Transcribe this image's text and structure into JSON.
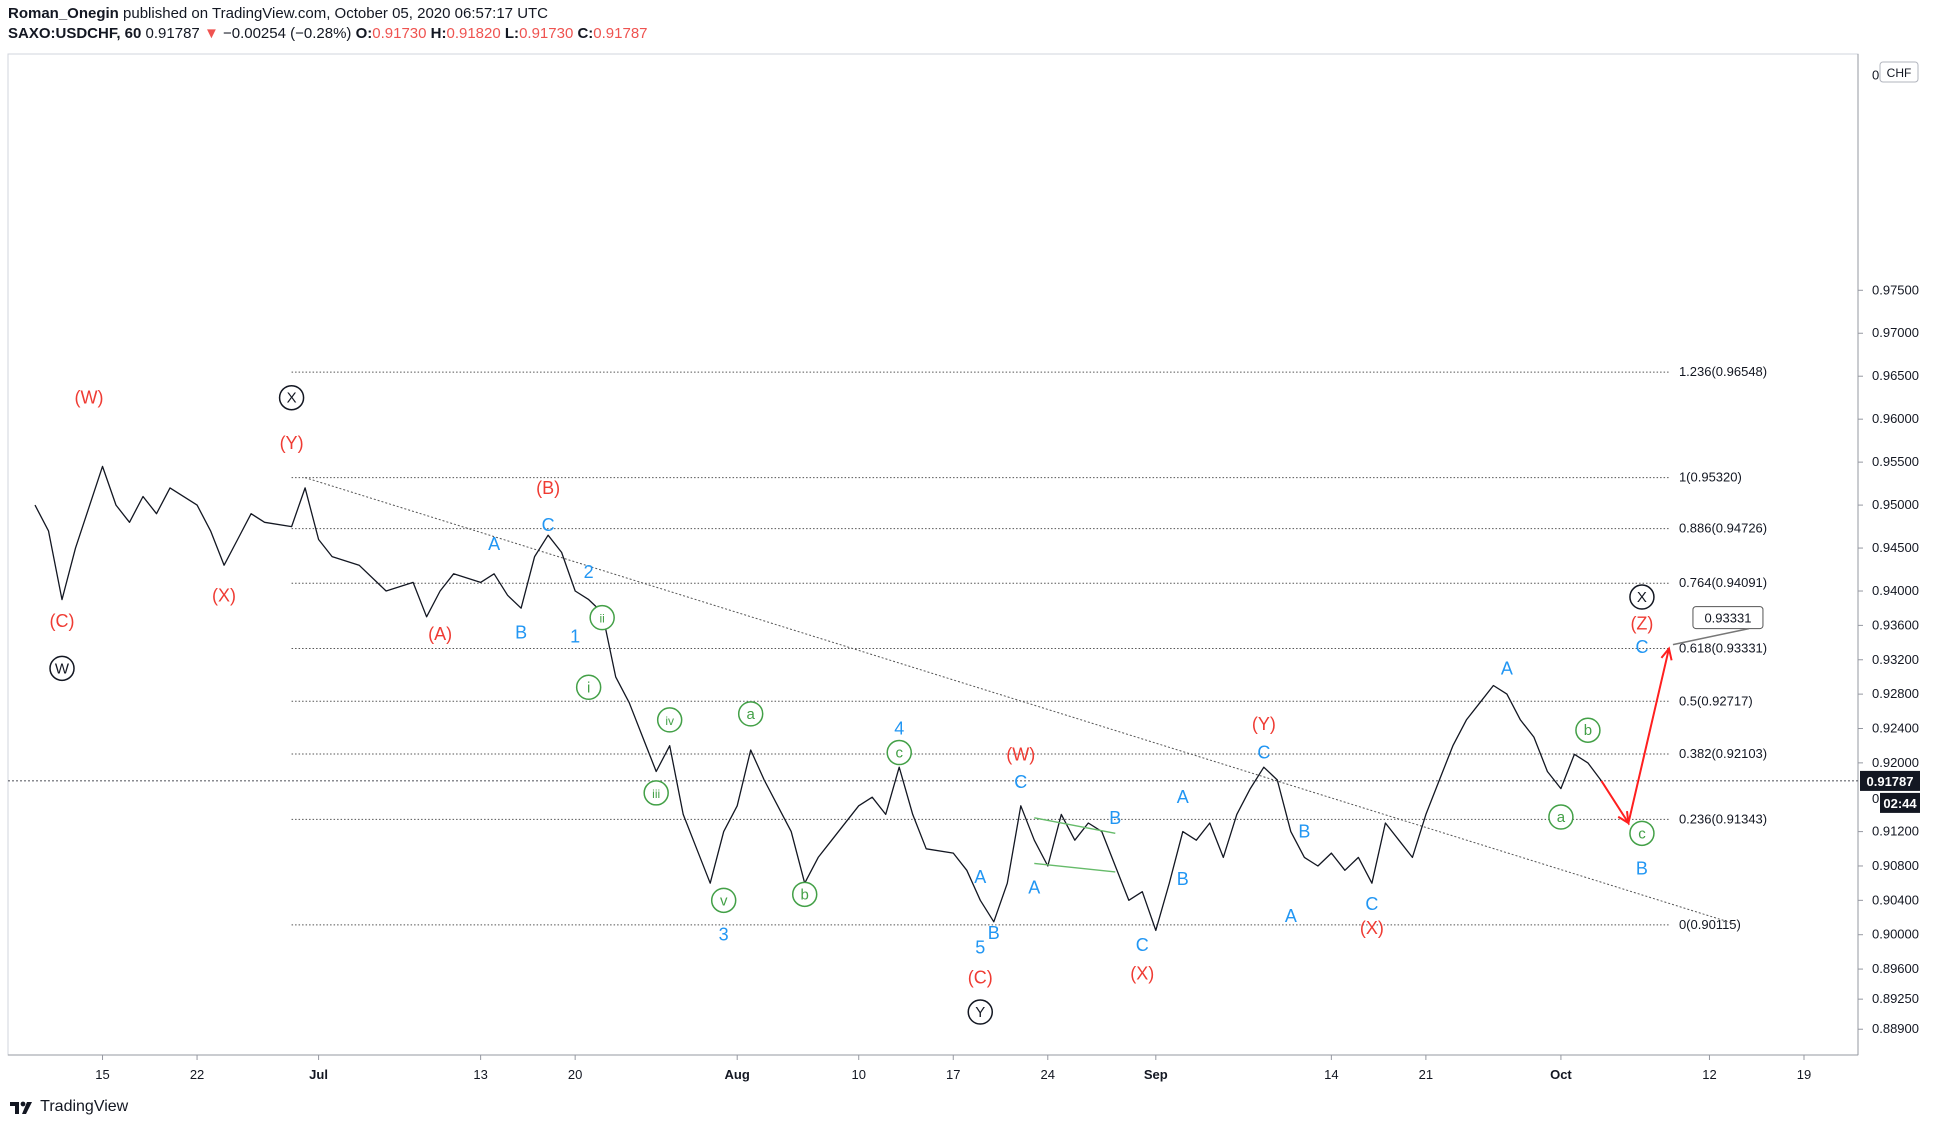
{
  "header": {
    "publisher": "Roman_Onegin",
    "published_text": "published on TradingView.com, October 05, 2020 06:57:17 UTC",
    "symbol": "SAXO:USDCHF, 60",
    "last": "0.91787",
    "arrow": "▼",
    "change": "−0.00254 (−0.28%)",
    "o_label": "O:",
    "o_value": "0.91730",
    "h_label": "H:",
    "h_value": "0.91820",
    "l_label": "L:",
    "l_value": "0.91730",
    "c_label": "C:",
    "c_value": "0.91787"
  },
  "footer": {
    "brand": "TradingView",
    "icon": "tradingview-logo-icon"
  },
  "chart_data": {
    "type": "line",
    "currency_badge": "CHF",
    "price_label": "0.91787",
    "countdown": "02:44",
    "ylim": [
      0.886,
      1.0025
    ],
    "y_ticks": [
      {
        "v": 0.975,
        "label": "0.97500"
      },
      {
        "v": 0.97,
        "label": "0.97000"
      },
      {
        "v": 0.965,
        "label": "0.96500"
      },
      {
        "v": 0.96,
        "label": "0.96000"
      },
      {
        "v": 0.955,
        "label": "0.95500"
      },
      {
        "v": 0.95,
        "label": "0.95000"
      },
      {
        "v": 0.945,
        "label": "0.94500"
      },
      {
        "v": 0.94,
        "label": "0.94000"
      },
      {
        "v": 0.936,
        "label": "0.93600"
      },
      {
        "v": 0.932,
        "label": "0.93200"
      },
      {
        "v": 0.928,
        "label": "0.92800"
      },
      {
        "v": 0.924,
        "label": "0.92400"
      },
      {
        "v": 0.92,
        "label": "0.92000"
      },
      {
        "v": 0.912,
        "label": "0.91200"
      },
      {
        "v": 0.908,
        "label": "0.90800"
      },
      {
        "v": 0.904,
        "label": "0.90400"
      },
      {
        "v": 0.9,
        "label": "0.90000"
      },
      {
        "v": 0.896,
        "label": "0.89600"
      },
      {
        "v": 0.8925,
        "label": "0.89250"
      },
      {
        "v": 0.889,
        "label": "0.88900"
      }
    ],
    "y_ticks_partial": [
      {
        "v": 1.0,
        "label": "0"
      },
      {
        "v": 0.9158,
        "label": "0"
      }
    ],
    "x_ticks": [
      {
        "x": "2020-06-15",
        "label": "15"
      },
      {
        "x": "2020-06-22",
        "label": "22"
      },
      {
        "x": "2020-07-01",
        "label": "Jul"
      },
      {
        "x": "2020-07-13",
        "label": "13"
      },
      {
        "x": "2020-07-20",
        "label": "20"
      },
      {
        "x": "2020-08-01",
        "label": "Aug"
      },
      {
        "x": "2020-08-10",
        "label": "10"
      },
      {
        "x": "2020-08-17",
        "label": "17"
      },
      {
        "x": "2020-08-24",
        "label": "24"
      },
      {
        "x": "2020-09-01",
        "label": "Sep"
      },
      {
        "x": "2020-09-14",
        "label": "14"
      },
      {
        "x": "2020-09-21",
        "label": "21"
      },
      {
        "x": "2020-10-01",
        "label": "Oct"
      },
      {
        "x": "2020-10-12",
        "label": "12"
      },
      {
        "x": "2020-10-19",
        "label": "19"
      }
    ],
    "series": [
      {
        "values": [
          [
            "2020-06-10",
            0.95
          ],
          [
            "2020-06-11",
            0.947
          ],
          [
            "2020-06-12",
            0.939
          ],
          [
            "2020-06-13",
            0.945
          ],
          [
            "2020-06-15",
            0.9545
          ],
          [
            "2020-06-16",
            0.95
          ],
          [
            "2020-06-17",
            0.948
          ],
          [
            "2020-06-18",
            0.951
          ],
          [
            "2020-06-19",
            0.949
          ],
          [
            "2020-06-20",
            0.952
          ],
          [
            "2020-06-22",
            0.95
          ],
          [
            "2020-06-23",
            0.947
          ],
          [
            "2020-06-24",
            0.943
          ],
          [
            "2020-06-25",
            0.946
          ],
          [
            "2020-06-26",
            0.949
          ],
          [
            "2020-06-27",
            0.948
          ],
          [
            "2020-06-29",
            0.9475
          ],
          [
            "2020-06-30",
            0.952
          ],
          [
            "2020-07-01",
            0.946
          ],
          [
            "2020-07-02",
            0.944
          ],
          [
            "2020-07-04",
            0.943
          ],
          [
            "2020-07-06",
            0.94
          ],
          [
            "2020-07-08",
            0.941
          ],
          [
            "2020-07-09",
            0.937
          ],
          [
            "2020-07-10",
            0.94
          ],
          [
            "2020-07-11",
            0.942
          ],
          [
            "2020-07-13",
            0.941
          ],
          [
            "2020-07-14",
            0.942
          ],
          [
            "2020-07-15",
            0.9395
          ],
          [
            "2020-07-16",
            0.938
          ],
          [
            "2020-07-17",
            0.944
          ],
          [
            "2020-07-18",
            0.9465
          ],
          [
            "2020-07-19",
            0.9445
          ],
          [
            "2020-07-20",
            0.94
          ],
          [
            "2020-07-21",
            0.939
          ],
          [
            "2020-07-22",
            0.9375
          ],
          [
            "2020-07-23",
            0.93
          ],
          [
            "2020-07-24",
            0.927
          ],
          [
            "2020-07-25",
            0.923
          ],
          [
            "2020-07-26",
            0.919
          ],
          [
            "2020-07-27",
            0.922
          ],
          [
            "2020-07-28",
            0.914
          ],
          [
            "2020-07-29",
            0.91
          ],
          [
            "2020-07-30",
            0.906
          ],
          [
            "2020-07-31",
            0.912
          ],
          [
            "2020-08-01",
            0.915
          ],
          [
            "2020-08-02",
            0.9215
          ],
          [
            "2020-08-03",
            0.918
          ],
          [
            "2020-08-04",
            0.915
          ],
          [
            "2020-08-05",
            0.912
          ],
          [
            "2020-08-06",
            0.906
          ],
          [
            "2020-08-07",
            0.909
          ],
          [
            "2020-08-08",
            0.911
          ],
          [
            "2020-08-10",
            0.915
          ],
          [
            "2020-08-11",
            0.916
          ],
          [
            "2020-08-12",
            0.914
          ],
          [
            "2020-08-13",
            0.9195
          ],
          [
            "2020-08-14",
            0.914
          ],
          [
            "2020-08-15",
            0.91
          ],
          [
            "2020-08-17",
            0.9095
          ],
          [
            "2020-08-18",
            0.9075
          ],
          [
            "2020-08-19",
            0.904
          ],
          [
            "2020-08-20",
            0.9015
          ],
          [
            "2020-08-21",
            0.906
          ],
          [
            "2020-08-22",
            0.915
          ],
          [
            "2020-08-23",
            0.911
          ],
          [
            "2020-08-24",
            0.908
          ],
          [
            "2020-08-25",
            0.914
          ],
          [
            "2020-08-26",
            0.911
          ],
          [
            "2020-08-27",
            0.913
          ],
          [
            "2020-08-28",
            0.912
          ],
          [
            "2020-08-29",
            0.908
          ],
          [
            "2020-08-30",
            0.904
          ],
          [
            "2020-08-31",
            0.905
          ],
          [
            "2020-09-01",
            0.9005
          ],
          [
            "2020-09-02",
            0.906
          ],
          [
            "2020-09-03",
            0.912
          ],
          [
            "2020-09-04",
            0.911
          ],
          [
            "2020-09-05",
            0.913
          ],
          [
            "2020-09-06",
            0.909
          ],
          [
            "2020-09-07",
            0.914
          ],
          [
            "2020-09-08",
            0.917
          ],
          [
            "2020-09-09",
            0.9195
          ],
          [
            "2020-09-10",
            0.918
          ],
          [
            "2020-09-11",
            0.912
          ],
          [
            "2020-09-12",
            0.909
          ],
          [
            "2020-09-13",
            0.908
          ],
          [
            "2020-09-14",
            0.9095
          ],
          [
            "2020-09-15",
            0.9075
          ],
          [
            "2020-09-16",
            0.909
          ],
          [
            "2020-09-17",
            0.906
          ],
          [
            "2020-09-18",
            0.913
          ],
          [
            "2020-09-19",
            0.911
          ],
          [
            "2020-09-20",
            0.909
          ],
          [
            "2020-09-21",
            0.914
          ],
          [
            "2020-09-22",
            0.918
          ],
          [
            "2020-09-23",
            0.922
          ],
          [
            "2020-09-24",
            0.925
          ],
          [
            "2020-09-25",
            0.927
          ],
          [
            "2020-09-26",
            0.929
          ],
          [
            "2020-09-27",
            0.928
          ],
          [
            "2020-09-28",
            0.925
          ],
          [
            "2020-09-29",
            0.923
          ],
          [
            "2020-09-30",
            0.919
          ],
          [
            "2020-10-01",
            0.917
          ],
          [
            "2020-10-02",
            0.921
          ],
          [
            "2020-10-03",
            0.92
          ],
          [
            "2020-10-04",
            0.9179
          ]
        ]
      }
    ],
    "fib_levels": [
      {
        "v": 0.96548,
        "label": "1.236(0.96548)"
      },
      {
        "v": 0.9532,
        "label": "1(0.95320)"
      },
      {
        "v": 0.94726,
        "label": "0.886(0.94726)"
      },
      {
        "v": 0.94091,
        "label": "0.764(0.94091)"
      },
      {
        "v": 0.93331,
        "label": "0.618(0.93331)"
      },
      {
        "v": 0.92717,
        "label": "0.5(0.92717)"
      },
      {
        "v": 0.92103,
        "label": "0.382(0.92103)"
      },
      {
        "v": 0.91343,
        "label": "0.236(0.91343)"
      },
      {
        "v": 0.90115,
        "label": "0(0.90115)"
      }
    ],
    "fib_x_start": "2020-06-29",
    "fib_x_end": "2020-10-09",
    "trendline": [
      [
        "2020-06-30",
        0.9532
      ],
      [
        "2020-10-14",
        0.9012
      ]
    ],
    "projection": [
      [
        "2020-10-04",
        0.9179
      ],
      [
        "2020-10-06",
        0.913
      ],
      [
        "2020-10-09",
        0.9333
      ]
    ],
    "projection_tag": "0.93331",
    "triangle_lines": [
      [
        [
          "2020-08-23",
          0.9136
        ],
        [
          "2020-08-29",
          0.9118
        ]
      ],
      [
        [
          "2020-08-23",
          0.9083
        ],
        [
          "2020-08-29",
          0.9073
        ]
      ]
    ],
    "wave_labels": [
      {
        "x": "2020-06-14",
        "y": 0.9625,
        "t": "(W)",
        "c": "red"
      },
      {
        "x": "2020-06-12",
        "y": 0.9365,
        "t": "(C)",
        "c": "red"
      },
      {
        "x": "2020-06-12",
        "y": 0.931,
        "t": "W",
        "c": "black",
        "circle": true
      },
      {
        "x": "2020-06-24",
        "y": 0.9395,
        "t": "(X)",
        "c": "red"
      },
      {
        "x": "2020-06-29",
        "y": 0.9625,
        "t": "X",
        "c": "black",
        "circle": true
      },
      {
        "x": "2020-06-29",
        "y": 0.9572,
        "t": "(Y)",
        "c": "red"
      },
      {
        "x": "2020-07-10",
        "y": 0.935,
        "t": "(A)",
        "c": "red"
      },
      {
        "x": "2020-07-14",
        "y": 0.9455,
        "t": "A",
        "c": "blue"
      },
      {
        "x": "2020-07-16",
        "y": 0.9352,
        "t": "B",
        "c": "blue"
      },
      {
        "x": "2020-07-18",
        "y": 0.952,
        "t": "(B)",
        "c": "red"
      },
      {
        "x": "2020-07-18",
        "y": 0.9477,
        "t": "C",
        "c": "blue"
      },
      {
        "x": "2020-07-21",
        "y": 0.9422,
        "t": "2",
        "c": "blue"
      },
      {
        "x": "2020-07-20",
        "y": 0.9347,
        "t": "1",
        "c": "blue"
      },
      {
        "x": "2020-07-22",
        "y": 0.9369,
        "t": "ii",
        "c": "green",
        "circle": true
      },
      {
        "x": "2020-07-21",
        "y": 0.9288,
        "t": "i",
        "c": "green",
        "circle": true
      },
      {
        "x": "2020-07-27",
        "y": 0.925,
        "t": "iv",
        "c": "green",
        "circle": true
      },
      {
        "x": "2020-07-26",
        "y": 0.9165,
        "t": "iii",
        "c": "green",
        "circle": true
      },
      {
        "x": "2020-07-31",
        "y": 0.904,
        "t": "v",
        "c": "green",
        "circle": true
      },
      {
        "x": "2020-07-31",
        "y": 0.9,
        "t": "3",
        "c": "blue"
      },
      {
        "x": "2020-08-02",
        "y": 0.9257,
        "t": "a",
        "c": "green",
        "circle": true
      },
      {
        "x": "2020-08-06",
        "y": 0.9047,
        "t": "b",
        "c": "green",
        "circle": true
      },
      {
        "x": "2020-08-13",
        "y": 0.924,
        "t": "4",
        "c": "blue"
      },
      {
        "x": "2020-08-13",
        "y": 0.9212,
        "t": "c",
        "c": "green",
        "circle": true
      },
      {
        "x": "2020-08-19",
        "y": 0.9067,
        "t": "A",
        "c": "blue"
      },
      {
        "x": "2020-08-20",
        "y": 0.9002,
        "t": "B",
        "c": "blue"
      },
      {
        "x": "2020-08-19",
        "y": 0.8985,
        "t": "5",
        "c": "blue"
      },
      {
        "x": "2020-08-19",
        "y": 0.895,
        "t": "(C)",
        "c": "red"
      },
      {
        "x": "2020-08-19",
        "y": 0.891,
        "t": "Y",
        "c": "black",
        "circle": true
      },
      {
        "x": "2020-08-22",
        "y": 0.921,
        "t": "(W)",
        "c": "red"
      },
      {
        "x": "2020-08-22",
        "y": 0.9178,
        "t": "C",
        "c": "blue"
      },
      {
        "x": "2020-08-23",
        "y": 0.9055,
        "t": "A",
        "c": "blue"
      },
      {
        "x": "2020-08-29",
        "y": 0.9136,
        "t": "B",
        "c": "blue"
      },
      {
        "x": "2020-08-31",
        "y": 0.8988,
        "t": "C",
        "c": "blue"
      },
      {
        "x": "2020-08-31",
        "y": 0.8955,
        "t": "(X)",
        "c": "red"
      },
      {
        "x": "2020-09-03",
        "y": 0.916,
        "t": "A",
        "c": "blue"
      },
      {
        "x": "2020-09-03",
        "y": 0.9065,
        "t": "B",
        "c": "blue"
      },
      {
        "x": "2020-09-09",
        "y": 0.9245,
        "t": "(Y)",
        "c": "red"
      },
      {
        "x": "2020-09-09",
        "y": 0.9212,
        "t": "C",
        "c": "blue"
      },
      {
        "x": "2020-09-12",
        "y": 0.912,
        "t": "B",
        "c": "blue"
      },
      {
        "x": "2020-09-11",
        "y": 0.9022,
        "t": "A",
        "c": "blue"
      },
      {
        "x": "2020-09-17",
        "y": 0.9036,
        "t": "C",
        "c": "blue"
      },
      {
        "x": "2020-09-17",
        "y": 0.9008,
        "t": "(X)",
        "c": "red"
      },
      {
        "x": "2020-09-27",
        "y": 0.931,
        "t": "A",
        "c": "blue"
      },
      {
        "x": "2020-10-03",
        "y": 0.9238,
        "t": "b",
        "c": "green",
        "circle": true
      },
      {
        "x": "2020-10-01",
        "y": 0.9137,
        "t": "a",
        "c": "green",
        "circle": true
      },
      {
        "x": "2020-10-07",
        "y": 0.9118,
        "t": "c",
        "c": "green",
        "circle": true
      },
      {
        "x": "2020-10-07",
        "y": 0.9077,
        "t": "B",
        "c": "blue"
      },
      {
        "x": "2020-10-07",
        "y": 0.9335,
        "t": "C",
        "c": "blue"
      },
      {
        "x": "2020-10-07",
        "y": 0.9362,
        "t": "(Z)",
        "c": "red"
      },
      {
        "x": "2020-10-07",
        "y": 0.9393,
        "t": "X",
        "c": "black",
        "circle": true
      }
    ],
    "colors": {
      "red": "#ef3b33",
      "blue": "#2196f3",
      "green": "#43a047",
      "black": "#131722",
      "price": "#131722",
      "projection": "#ff1f1f"
    }
  }
}
